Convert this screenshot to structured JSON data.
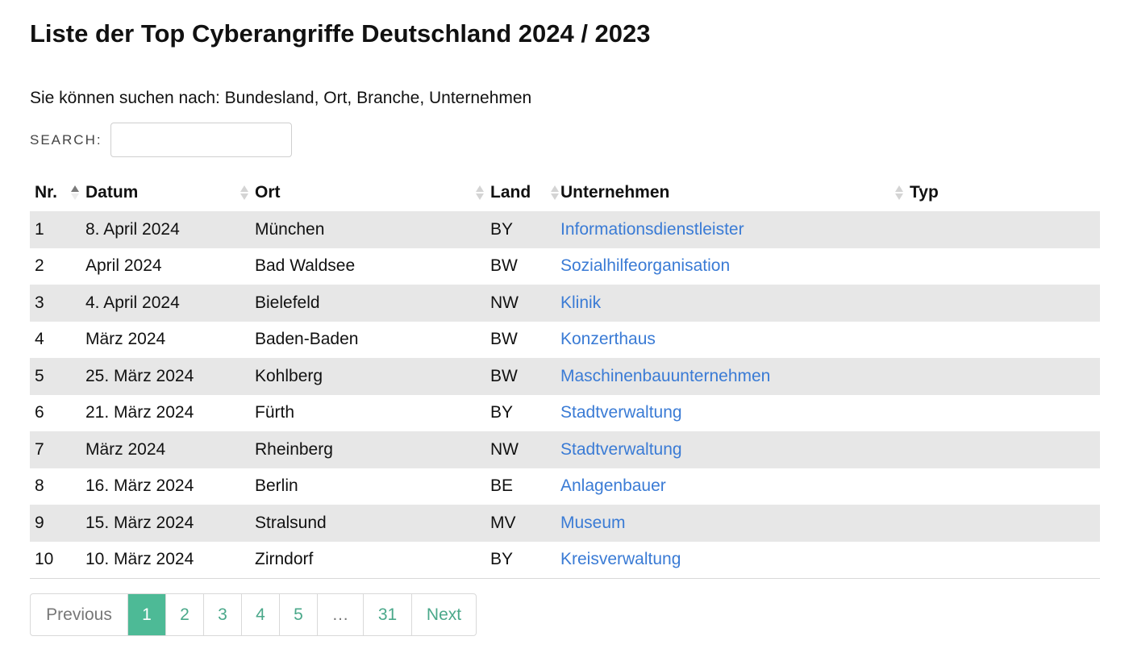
{
  "page": {
    "title": "Liste der Top Cyberangriffe Deutschland 2024 / 2023",
    "intro": "Sie können suchen nach: Bundesland, Ort, Branche, Unternehmen"
  },
  "search": {
    "label": "SEARCH:",
    "value": "",
    "placeholder": ""
  },
  "table": {
    "columns": [
      "Nr.",
      "Datum",
      "Ort",
      "Land",
      "Unternehmen",
      "Typ"
    ],
    "sorted_column": "Nr.",
    "sort_direction": "ascending",
    "rows": [
      {
        "nr": "1",
        "datum": "8. April 2024",
        "ort": "München",
        "land": "BY",
        "unternehmen": "Informationsdienstleister",
        "typ": ""
      },
      {
        "nr": "2",
        "datum": "April 2024",
        "ort": "Bad Waldsee",
        "land": "BW",
        "unternehmen": "Sozialhilfeorganisation",
        "typ": ""
      },
      {
        "nr": "3",
        "datum": "4. April 2024",
        "ort": "Bielefeld",
        "land": "NW",
        "unternehmen": "Klinik",
        "typ": ""
      },
      {
        "nr": "4",
        "datum": "März 2024",
        "ort": "Baden-Baden",
        "land": "BW",
        "unternehmen": "Konzerthaus",
        "typ": ""
      },
      {
        "nr": "5",
        "datum": "25. März 2024",
        "ort": "Kohlberg",
        "land": "BW",
        "unternehmen": "Maschinenbauunternehmen",
        "typ": ""
      },
      {
        "nr": "6",
        "datum": "21. März 2024",
        "ort": "Fürth",
        "land": "BY",
        "unternehmen": "Stadtverwaltung",
        "typ": ""
      },
      {
        "nr": "7",
        "datum": "März 2024",
        "ort": "Rheinberg",
        "land": "NW",
        "unternehmen": "Stadtverwaltung",
        "typ": ""
      },
      {
        "nr": "8",
        "datum": "16. März 2024",
        "ort": "Berlin",
        "land": "BE",
        "unternehmen": "Anlagenbauer",
        "typ": ""
      },
      {
        "nr": "9",
        "datum": "15. März 2024",
        "ort": "Stralsund",
        "land": "MV",
        "unternehmen": "Museum",
        "typ": ""
      },
      {
        "nr": "10",
        "datum": "10. März 2024",
        "ort": "Zirndorf",
        "land": "BY",
        "unternehmen": "Kreisverwaltung",
        "typ": ""
      }
    ]
  },
  "pagination": {
    "previous": "Previous",
    "pages": [
      "1",
      "2",
      "3",
      "4",
      "5"
    ],
    "current": "1",
    "ellipsis": "…",
    "last": "31",
    "next": "Next"
  },
  "colors": {
    "link": "#3a7bd5",
    "accent": "#4dba96",
    "row_stripe": "#e7e7e7"
  }
}
